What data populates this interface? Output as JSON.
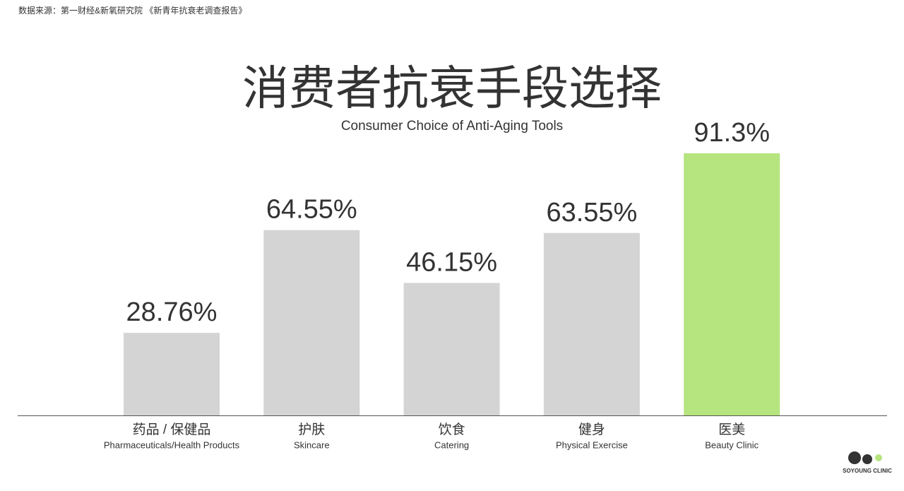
{
  "source": "数据来源：第一财经&新氧研究院 《新青年抗衰老调查报告》",
  "logo": "SOYOUNG CLINIC",
  "chart_data": {
    "type": "bar",
    "title": "消费者抗衰手段选择",
    "subtitle": "Consumer Choice of Anti-Aging Tools",
    "categories": [
      "药品 / 保健品",
      "护肤",
      "饮食",
      "健身",
      "医美"
    ],
    "categories_en": [
      "Pharmaceuticals/Health Products",
      "Skincare",
      "Catering",
      "Physical Exercise",
      "Beauty Clinic"
    ],
    "values": [
      28.76,
      64.55,
      46.15,
      63.55,
      91.3
    ],
    "value_labels": [
      "28.76%",
      "64.55%",
      "46.15%",
      "63.55%",
      "91.3%"
    ],
    "colors": [
      "#d4d4d4",
      "#d4d4d4",
      "#d4d4d4",
      "#d4d4d4",
      "#b6e47e"
    ]
  }
}
